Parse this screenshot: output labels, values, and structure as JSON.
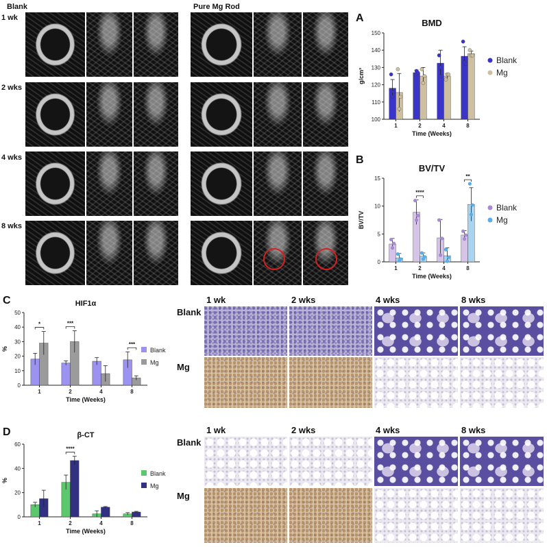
{
  "ct": {
    "group_labels": [
      "Blank",
      "Pure Mg Rod"
    ],
    "row_labels": [
      "1 wk",
      "2 wks",
      "4 wks",
      "8 wks"
    ]
  },
  "ihc": {
    "col_labels": [
      "1 wk",
      "2 wks",
      "4 wks",
      "8 wks"
    ],
    "row_labels": [
      "Blank",
      "Mg"
    ]
  },
  "panel_letters": [
    "A",
    "B",
    "C",
    "D"
  ],
  "chart_data": [
    {
      "panel": "A",
      "type": "bar",
      "title": "BMD",
      "xlabel": "Time (Weeks)",
      "ylabel": "g/cm³",
      "categories": [
        "1",
        "2",
        "4",
        "8"
      ],
      "ylim": [
        100,
        150
      ],
      "yticks": [
        100,
        110,
        120,
        130,
        140,
        150
      ],
      "series": [
        {
          "name": "Blank",
          "color": "#3b34c8",
          "values": [
            118,
            127,
            132.5,
            136.5
          ],
          "errors": [
            5,
            1.5,
            7.5,
            5.5
          ],
          "points": [
            [
              126,
              113,
              116
            ],
            [
              126,
              128,
              127
            ],
            [
              137,
              130,
              125
            ],
            [
              145,
              133,
              132
            ]
          ]
        },
        {
          "name": "Mg",
          "color": "#cdbf9f",
          "values": [
            115.5,
            125,
            125,
            138
          ],
          "errors": [
            11,
            5,
            1.5,
            1.5
          ],
          "points": [
            [
              129,
              106,
              113
            ],
            [
              129,
              121,
              125
            ],
            [
              123,
              126,
              126
            ],
            [
              140,
              137,
              137
            ]
          ]
        }
      ],
      "legend": "right"
    },
    {
      "panel": "B",
      "type": "bar",
      "title": "BV/TV",
      "xlabel": "Time (Weeks)",
      "ylabel": "BV/TV",
      "categories": [
        "1",
        "2",
        "4",
        "8"
      ],
      "ylim": [
        0,
        15
      ],
      "yticks": [
        0,
        5,
        10,
        15
      ],
      "series": [
        {
          "name": "Blank",
          "color": "#d5c3e8",
          "dot": "#a78bd2",
          "values": [
            3.2,
            8.9,
            4.3,
            4.8
          ],
          "errors": [
            1.0,
            2.2,
            3.3,
            0.8
          ],
          "points": [
            [
              4,
              2.5,
              3.3
            ],
            [
              11,
              7.5,
              8.3
            ],
            [
              7.5,
              1.2,
              4.2
            ],
            [
              5.5,
              4.1,
              4.8
            ]
          ]
        },
        {
          "name": "Mg",
          "color": "#a8d4f2",
          "dot": "#5aaee8",
          "values": [
            0.7,
            1.0,
            1.1,
            10.3
          ],
          "errors": [
            0.8,
            0.6,
            1.4,
            3.0
          ],
          "points": [
            [
              1.4,
              0.2,
              0.5
            ],
            [
              1.6,
              0.5,
              0.9
            ],
            [
              2.2,
              0.1,
              0.8
            ],
            [
              14,
              8.5,
              10.2
            ]
          ]
        }
      ],
      "significance": [
        {
          "category": "2",
          "label": "****"
        },
        {
          "category": "8",
          "label": "**"
        }
      ],
      "legend": "right"
    },
    {
      "panel": "C",
      "type": "bar",
      "title": "HIF1α",
      "xlabel": "Time (Weeks)",
      "ylabel": "%",
      "categories": [
        "1",
        "2",
        "4",
        "8"
      ],
      "ylim": [
        0,
        50
      ],
      "yticks": [
        0,
        10,
        20,
        30,
        40,
        50
      ],
      "series": [
        {
          "name": "Blank",
          "color": "#9b93ef",
          "values": [
            18,
            15.3,
            16.5,
            17.5
          ],
          "errors": [
            4,
            1.5,
            2.5,
            5.5
          ]
        },
        {
          "name": "Mg",
          "color": "#9b9b9b",
          "values": [
            29,
            30,
            8,
            5
          ],
          "errors": [
            8,
            7.5,
            5.5,
            1.5
          ]
        }
      ],
      "significance": [
        {
          "category": "1",
          "label": "*"
        },
        {
          "category": "2",
          "label": "***"
        },
        {
          "category": "8",
          "label": "***"
        }
      ],
      "legend": "right"
    },
    {
      "panel": "D",
      "type": "bar",
      "title": "β-CT",
      "xlabel": "Time (Weeks)",
      "ylabel": "%",
      "categories": [
        "1",
        "2",
        "4",
        "8"
      ],
      "ylim": [
        0,
        60
      ],
      "yticks": [
        0,
        20,
        40,
        60
      ],
      "series": [
        {
          "name": "Blank",
          "color": "#5cc86e",
          "values": [
            10,
            28.5,
            2.5,
            2.5
          ],
          "errors": [
            2,
            6,
            2.5,
            1
          ]
        },
        {
          "name": "Mg",
          "color": "#323080",
          "values": [
            15,
            46.5,
            8,
            4
          ],
          "errors": [
            7,
            3.5,
            0.5,
            0.5
          ]
        }
      ],
      "significance": [
        {
          "category": "2",
          "label": "****"
        }
      ],
      "legend": "right"
    }
  ]
}
